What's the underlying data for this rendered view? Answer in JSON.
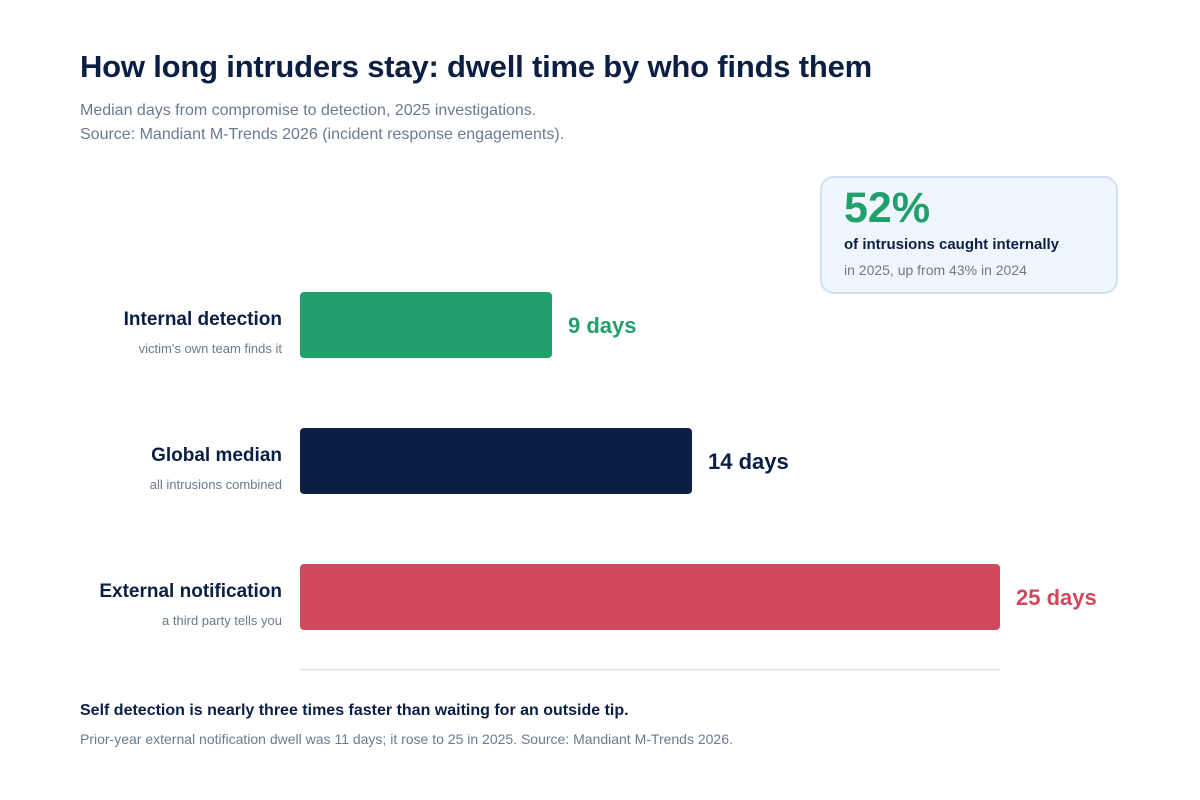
{
  "header": {
    "title": "How long intruders stay: dwell time by who finds them",
    "subtitle_line1": "Median days from compromise to detection, 2025 investigations.",
    "subtitle_line2": "Source: Mandiant M-Trends 2026 (incident response engagements)."
  },
  "callout": {
    "value": "52%",
    "label": "of intrusions caught internally",
    "note": "in 2025, up from 43% in 2024"
  },
  "chart_data": {
    "type": "bar",
    "orientation": "horizontal",
    "categories": [
      "Internal detection",
      "Global median",
      "External notification"
    ],
    "category_subtitles": [
      "victim's own team finds it",
      "all intrusions combined",
      "a third party tells you"
    ],
    "values": [
      9,
      14,
      25
    ],
    "value_labels": [
      "9 days",
      "14 days",
      "25 days"
    ],
    "colors": [
      "#22a06b",
      "#0b1f44",
      "#d2495e"
    ],
    "unit": "days",
    "xlim": [
      0,
      25
    ],
    "grid": false
  },
  "footer": {
    "takeaway": "Self detection is nearly three times faster than waiting for an outside tip.",
    "note": "Prior-year external notification dwell was 11 days; it rose to 25 in 2025. Source: Mandiant M-Trends 2026."
  }
}
